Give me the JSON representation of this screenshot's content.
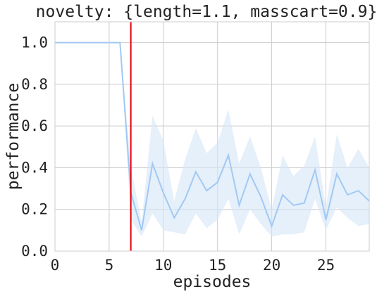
{
  "chart_data": {
    "type": "line",
    "title": "novelty: {length=1.1, masscart=0.9}",
    "xlabel": "episodes",
    "ylabel": "performance",
    "xlim": [
      0,
      29
    ],
    "ylim": [
      0,
      1.1
    ],
    "x_ticks": [
      "0",
      "5",
      "10",
      "15",
      "20",
      "25"
    ],
    "y_ticks": [
      "0.0",
      "0.2",
      "0.4",
      "0.6",
      "0.8",
      "1.0"
    ],
    "grid": true,
    "legend": "none",
    "novelty_marker_x": 7,
    "colors": {
      "line": "#a1c9f4",
      "band": "#d6e6f7",
      "marker": "#e8000b",
      "grid": "#cccccc"
    },
    "series": [
      {
        "x": [
          0,
          1,
          2,
          3,
          4,
          5,
          6,
          7,
          8,
          9,
          10,
          11,
          12,
          13,
          14,
          15,
          16,
          17,
          18,
          19,
          20,
          21,
          22,
          23,
          24,
          25,
          26,
          27,
          28,
          29
        ],
        "values": [
          1.0,
          1.0,
          1.0,
          1.0,
          1.0,
          1.0,
          1.0,
          0.28,
          0.1,
          0.42,
          0.28,
          0.16,
          0.25,
          0.38,
          0.29,
          0.33,
          0.46,
          0.22,
          0.37,
          0.26,
          0.12,
          0.27,
          0.22,
          0.23,
          0.39,
          0.15,
          0.37,
          0.27,
          0.29,
          0.24
        ],
        "lower": [
          1.0,
          1.0,
          1.0,
          1.0,
          1.0,
          1.0,
          1.0,
          0.15,
          0.07,
          0.18,
          0.1,
          0.09,
          0.08,
          0.18,
          0.11,
          0.15,
          0.25,
          0.08,
          0.2,
          0.13,
          0.07,
          0.08,
          0.08,
          0.09,
          0.25,
          0.1,
          0.21,
          0.16,
          0.12,
          0.13
        ],
        "upper": [
          1.0,
          1.0,
          1.0,
          1.0,
          1.0,
          1.0,
          1.0,
          0.4,
          0.14,
          0.65,
          0.53,
          0.24,
          0.44,
          0.59,
          0.47,
          0.52,
          0.68,
          0.42,
          0.55,
          0.4,
          0.2,
          0.46,
          0.36,
          0.41,
          0.55,
          0.21,
          0.56,
          0.4,
          0.49,
          0.4
        ]
      }
    ]
  }
}
